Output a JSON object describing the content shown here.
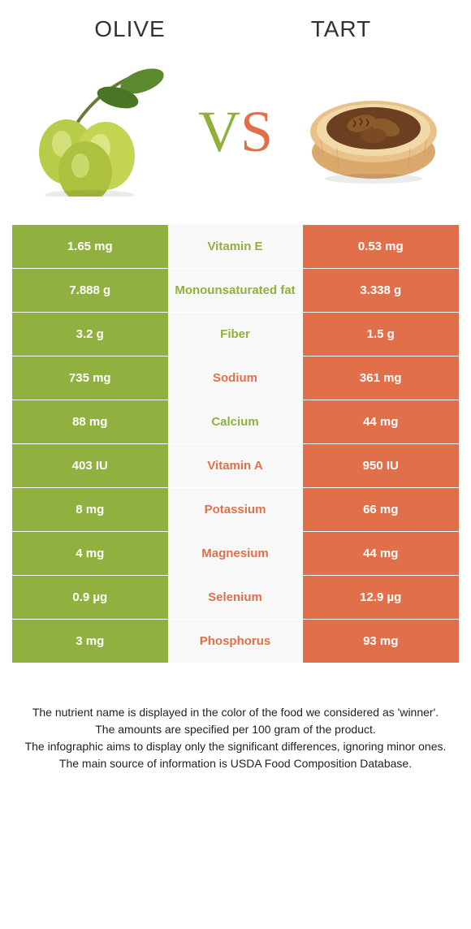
{
  "header": {
    "left_title": "Olive",
    "right_title": "Tart"
  },
  "vs": {
    "v": "V",
    "s": "S"
  },
  "colors": {
    "left_bg": "#90b040",
    "right_bg": "#e1704a",
    "mid_bg": "#f8f8f8",
    "left_text": "#8fb13c",
    "right_text": "#e1704a"
  },
  "rows": [
    {
      "left": "1.65 mg",
      "label": "Vitamin E",
      "right": "0.53 mg",
      "winner": "left"
    },
    {
      "left": "7.888 g",
      "label": "Monounsaturated fat",
      "right": "3.338 g",
      "winner": "left"
    },
    {
      "left": "3.2 g",
      "label": "Fiber",
      "right": "1.5 g",
      "winner": "left"
    },
    {
      "left": "735 mg",
      "label": "Sodium",
      "right": "361 mg",
      "winner": "right"
    },
    {
      "left": "88 mg",
      "label": "Calcium",
      "right": "44 mg",
      "winner": "left"
    },
    {
      "left": "403 IU",
      "label": "Vitamin A",
      "right": "950 IU",
      "winner": "right"
    },
    {
      "left": "8 mg",
      "label": "Potassium",
      "right": "66 mg",
      "winner": "right"
    },
    {
      "left": "4 mg",
      "label": "Magnesium",
      "right": "44 mg",
      "winner": "right"
    },
    {
      "left": "0.9 µg",
      "label": "Selenium",
      "right": "12.9 µg",
      "winner": "right"
    },
    {
      "left": "3 mg",
      "label": "Phosphorus",
      "right": "93 mg",
      "winner": "right"
    }
  ],
  "footer": {
    "line1": "The nutrient name is displayed in the color of the food we considered as 'winner'.",
    "line2": "The amounts are specified per 100 gram of the product.",
    "line3": "The infographic aims to display only the significant differences, ignoring minor ones.",
    "line4": "The main source of information is USDA Food Composition Database."
  }
}
